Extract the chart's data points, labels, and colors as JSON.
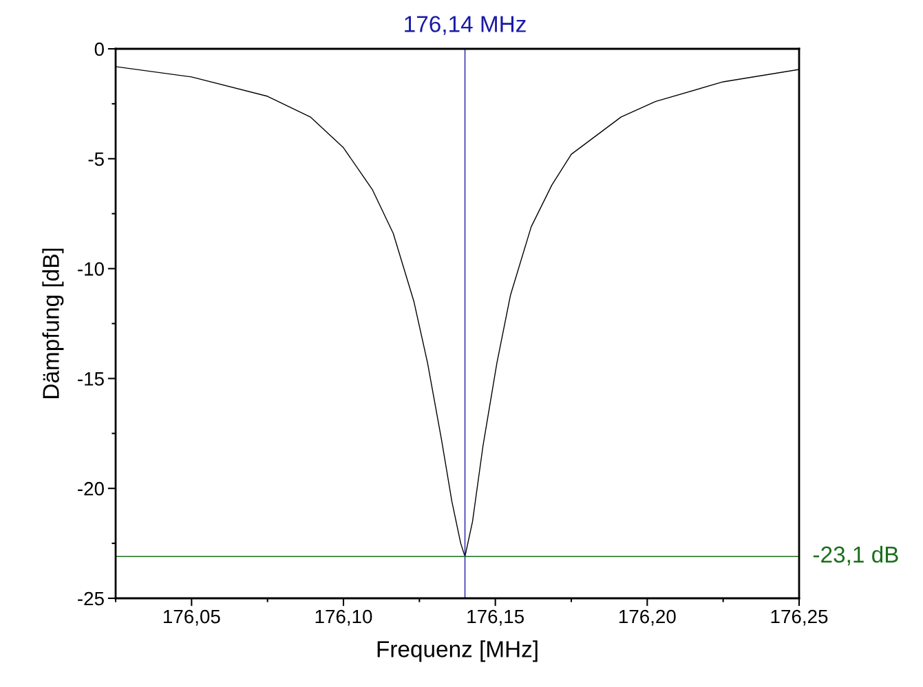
{
  "chart_data": {
    "type": "line",
    "xlabel": "Frequenz [MHz]",
    "ylabel": "Dämpfung [dB]",
    "x": [
      176.025,
      176.05,
      176.075,
      176.0891,
      176.1,
      176.1095,
      176.1164,
      176.1232,
      176.1277,
      176.1323,
      176.1357,
      176.1386,
      176.14,
      176.1425,
      176.1459,
      176.1505,
      176.155,
      176.1618,
      176.1686,
      176.175,
      176.1914,
      176.2027,
      176.225,
      176.25
    ],
    "series": [
      {
        "color": "#000000",
        "values": [
          -0.81,
          -1.28,
          -2.16,
          -3.1,
          -4.5,
          -6.4,
          -8.4,
          -11.5,
          -14.3,
          -17.8,
          -20.6,
          -22.5,
          -23.1,
          -21.5,
          -18.1,
          -14.3,
          -11.2,
          -8.1,
          -6.2,
          -4.8,
          -3.1,
          -2.4,
          -1.5,
          -0.94
        ]
      }
    ],
    "xlim": [
      176.025,
      176.25
    ],
    "ylim": [
      -25,
      0
    ],
    "xticks": [
      {
        "value": 176.025,
        "label": null
      },
      {
        "value": 176.05,
        "label": "176,05"
      },
      {
        "value": 176.075,
        "label": null
      },
      {
        "value": 176.1,
        "label": "176,10"
      },
      {
        "value": 176.125,
        "label": null
      },
      {
        "value": 176.15,
        "label": "176,15"
      },
      {
        "value": 176.175,
        "label": null
      },
      {
        "value": 176.2,
        "label": "176,20"
      },
      {
        "value": 176.225,
        "label": null
      },
      {
        "value": 176.25,
        "label": "176,25"
      }
    ],
    "yticks": [
      -25,
      {
        "value": -22.5,
        "label": null
      },
      -20,
      {
        "value": -17.5,
        "label": null
      },
      -15,
      {
        "value": -12.5,
        "label": null
      },
      -10,
      {
        "value": -7.5,
        "label": null
      },
      -5,
      {
        "value": -2.5,
        "label": null
      },
      0
    ],
    "ref_lines": [
      {
        "axis": "x",
        "value": 176.14,
        "label": "176,14 MHz",
        "color": "#1a1aa6"
      },
      {
        "axis": "y",
        "value": -23.1,
        "label": "-23,1 dB",
        "color": "#1a6e1a"
      }
    ],
    "grid": false,
    "legend": false,
    "marker": "none",
    "line_style": "solid"
  }
}
